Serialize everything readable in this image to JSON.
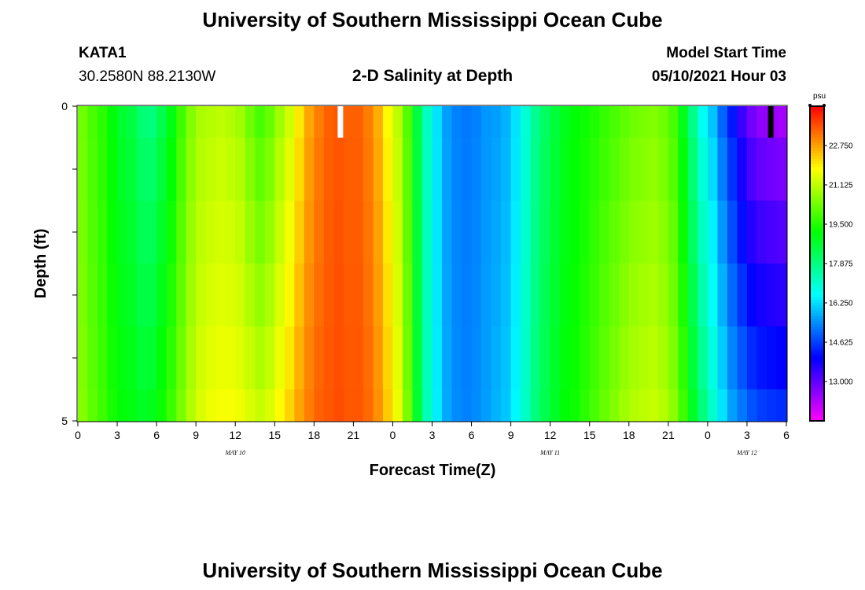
{
  "page": {
    "title_top": "University of Southern Mississippi Ocean Cube",
    "title_bottom": "University of Southern Mississippi Ocean Cube",
    "station": "KATA1",
    "coords": "30.2580N  88.2130W",
    "plot_title": "2-D Salinity at Depth",
    "model_label": "Model Start Time",
    "model_time": "05/10/2021 Hour 03"
  },
  "chart_data": {
    "type": "heatmap",
    "title": "2-D Salinity at Depth",
    "xlabel": "Forecast Time(Z)",
    "ylabel": "Depth (ft)",
    "x_tick_labels": [
      "0",
      "3",
      "6",
      "9",
      "12",
      "15",
      "18",
      "21",
      "0",
      "3",
      "6",
      "9",
      "12",
      "15",
      "18",
      "21",
      "0",
      "3",
      "6"
    ],
    "x_hours": [
      0,
      3,
      6,
      9,
      12,
      15,
      18,
      21,
      24,
      27,
      30,
      33,
      36,
      39,
      42,
      45,
      48,
      51,
      54
    ],
    "xlim": [
      0,
      54
    ],
    "date_labels": [
      {
        "text": "MAY 10",
        "hour": 12
      },
      {
        "text": "MAY 11",
        "hour": 36
      },
      {
        "text": "MAY 12",
        "hour": 51
      }
    ],
    "y_tick_labels": [
      "0",
      "5"
    ],
    "ylim": [
      0,
      5
    ],
    "colorbar": {
      "unit": "psu",
      "range": [
        11.375,
        24.375
      ],
      "tick_values": [
        22.75,
        21.125,
        19.5,
        17.875,
        16.25,
        14.625,
        13.0
      ],
      "tick_labels": [
        "22.750",
        "21.125",
        "19.500",
        "17.875",
        "16.250",
        "14.625",
        "13.000"
      ]
    },
    "depth_layers": [
      0,
      0.5,
      1.5,
      2.5,
      3.5,
      4.5
    ],
    "surface_salinity": [
      20.3,
      19.9,
      19.6,
      19.1,
      18.7,
      18.5,
      18.0,
      17.9,
      18.4,
      19.0,
      19.8,
      20.5,
      20.9,
      21.0,
      21.1,
      21.0,
      20.8,
      20.3,
      19.9,
      20.2,
      20.8,
      21.3,
      22.0,
      22.7,
      23.1,
      23.4,
      23.5,
      23.4,
      23.4,
      23.1,
      22.6,
      21.8,
      21.1,
      20.0,
      18.5,
      17.2,
      16.3,
      15.6,
      15.3,
      15.2,
      15.3,
      15.5,
      15.6,
      15.8,
      16.3,
      17.0,
      17.7,
      18.2,
      18.6,
      18.9,
      19.1,
      19.3,
      19.5,
      19.7,
      19.9,
      20.1,
      20.3,
      20.4,
      20.5,
      20.3,
      19.9,
      18.9,
      17.8,
      16.7,
      16.0,
      15.0,
      14.2,
      13.4,
      12.8,
      12.5,
      12.4,
      12.3
    ],
    "deep_salinity": [
      20.5,
      20.1,
      19.8,
      19.4,
      19.1,
      19.0,
      18.8,
      18.9,
      19.3,
      19.8,
      20.4,
      21.0,
      21.4,
      21.6,
      21.7,
      21.7,
      21.6,
      21.4,
      21.2,
      21.4,
      21.8,
      22.2,
      22.7,
      23.1,
      23.4,
      23.5,
      23.6,
      23.5,
      23.5,
      23.3,
      22.9,
      22.3,
      21.6,
      20.4,
      18.7,
      17.3,
      16.4,
      15.7,
      15.4,
      15.3,
      15.4,
      15.6,
      15.8,
      16.0,
      16.5,
      17.2,
      17.9,
      18.4,
      18.8,
      19.1,
      19.3,
      19.6,
      19.9,
      20.2,
      20.5,
      20.8,
      21.0,
      21.1,
      21.2,
      21.0,
      20.6,
      19.8,
      18.8,
      17.9,
      17.1,
      16.3,
      15.6,
      15.2,
      14.8,
      14.6,
      14.5,
      14.4
    ],
    "colors": {
      "missing_marker_white": "#ffffff",
      "missing_marker_black": "#000000",
      "frame": "#000000"
    }
  },
  "axes_text": {
    "xlabel": "Forecast Time(Z)",
    "ylabel": "Depth (ft)",
    "cb_unit": "psu"
  }
}
